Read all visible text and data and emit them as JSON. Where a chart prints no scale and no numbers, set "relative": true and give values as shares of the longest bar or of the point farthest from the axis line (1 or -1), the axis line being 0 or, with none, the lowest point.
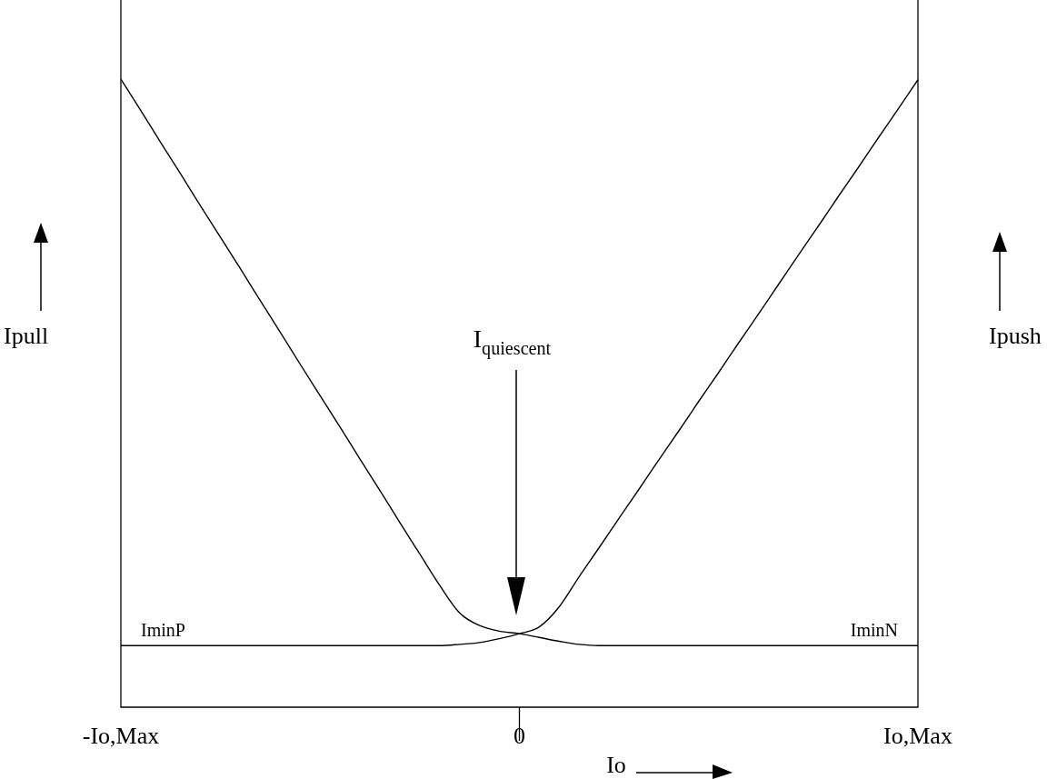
{
  "chart_data": {
    "type": "line",
    "relative": true,
    "xlabel": "Io",
    "ylabel": "Ipull",
    "y2label": "Ipush",
    "categories": [
      "-Io,Max",
      null,
      null,
      null,
      null,
      null,
      null,
      null,
      null,
      null,
      null,
      null,
      null,
      null,
      null,
      null,
      null,
      null,
      null,
      null,
      "0",
      null,
      null,
      null,
      null,
      null,
      null,
      null,
      null,
      null,
      null,
      null,
      null,
      null,
      null,
      null,
      null,
      null,
      null,
      null,
      "Io,Max"
    ],
    "series": [
      {
        "color": "#000000",
        "values": [
          1.0,
          0.95,
          0.899,
          0.849,
          0.798,
          0.748,
          0.698,
          0.647,
          0.597,
          0.546,
          0.496,
          0.446,
          0.395,
          0.345,
          0.294,
          0.244,
          0.194,
          0.15,
          0.13,
          0.121,
          0.117,
          0.111,
          0.105,
          0.1,
          0.098,
          0.098,
          0.098,
          0.098,
          0.098,
          0.098,
          0.098,
          0.098,
          0.098,
          0.098,
          0.098,
          0.098,
          0.098,
          0.098,
          0.098,
          0.098,
          0.098
        ]
      },
      {
        "color": "#000000",
        "values": [
          0.098,
          0.098,
          0.098,
          0.098,
          0.098,
          0.098,
          0.098,
          0.098,
          0.098,
          0.098,
          0.098,
          0.098,
          0.098,
          0.098,
          0.098,
          0.098,
          0.098,
          0.1,
          0.103,
          0.109,
          0.117,
          0.128,
          0.16,
          0.208,
          0.254,
          0.301,
          0.347,
          0.394,
          0.44,
          0.487,
          0.533,
          0.58,
          0.626,
          0.673,
          0.72,
          0.766,
          0.813,
          0.859,
          0.906,
          0.952,
          0.999
        ]
      }
    ],
    "annotations": [
      "IminP",
      "IminN",
      "I$_{quiescent}$"
    ],
    "legend": false,
    "grid": false,
    "marker": "none",
    "line_style": "solid"
  }
}
